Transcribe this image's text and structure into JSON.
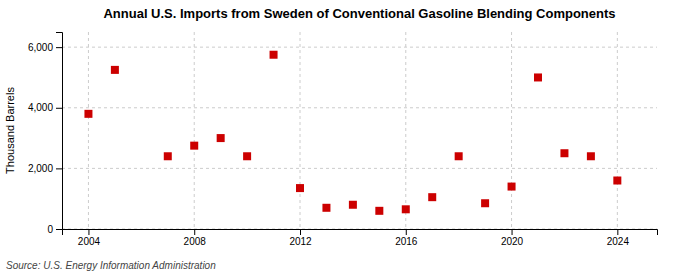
{
  "chart_data": {
    "type": "scatter",
    "title": "Annual U.S. Imports from Sweden of Conventional Gasoline Blending Components",
    "y_label": "Thousand Barrels",
    "annotations": [
      "Source: U.S. Energy Information Administration"
    ],
    "x": [
      2004,
      2005,
      2007,
      2008,
      2009,
      2010,
      2011,
      2012,
      2013,
      2014,
      2015,
      2016,
      2017,
      2018,
      2019,
      2020,
      2021,
      2022,
      2023,
      2024
    ],
    "values": [
      3800,
      5250,
      2400,
      2750,
      3000,
      2400,
      5750,
      1350,
      700,
      800,
      600,
      650,
      1050,
      2400,
      850,
      1400,
      5000,
      2500,
      2400,
      1600
    ],
    "color": "#cc0000",
    "marker": "square",
    "xlim": [
      2003,
      2025.5
    ],
    "xticks": [
      2004,
      2008,
      2012,
      2016,
      2020,
      2024
    ],
    "ylim": [
      0,
      6500
    ],
    "yticks": [
      0,
      {
        "value": 2000,
        "label": "2,000"
      },
      {
        "value": 4000,
        "label": "4,000"
      },
      {
        "value": 6000,
        "label": "6,000"
      }
    ],
    "grid": true
  }
}
